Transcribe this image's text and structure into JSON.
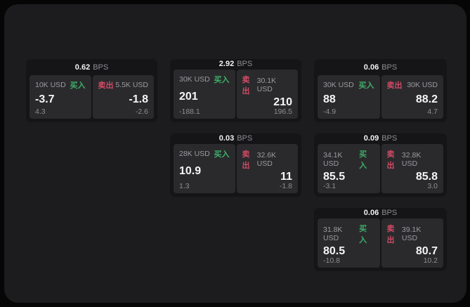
{
  "window": {
    "background": "#060607",
    "panel_background": "#1c1c1e"
  },
  "colors": {
    "card_background": "#151517",
    "pane_background": "#2a2a2c",
    "buy_green": "#3fae6a",
    "sell_red": "#cf4b66",
    "text_primary": "#f2f2f3",
    "text_muted": "#8e8e93"
  },
  "labels": {
    "bps_unit": "BPS",
    "buy": "买入",
    "sell": "卖出"
  },
  "cards": [
    {
      "bps": "0.62",
      "buy": {
        "amount": "10K USD",
        "price": "-3.7",
        "change": "4.3"
      },
      "sell": {
        "amount": "5.5K USD",
        "price": "-1.8",
        "change": "-2.6"
      }
    },
    {
      "bps": "2.92",
      "buy": {
        "amount": "30K USD",
        "price": "201",
        "change": "-188.1"
      },
      "sell": {
        "amount": "30.1K USD",
        "price": "210",
        "change": "196.5"
      }
    },
    {
      "bps": "0.06",
      "buy": {
        "amount": "30K USD",
        "price": "88",
        "change": "-4.9"
      },
      "sell": {
        "amount": "30K USD",
        "price": "88.2",
        "change": "4.7"
      }
    },
    {
      "bps": "0.03",
      "buy": {
        "amount": "28K USD",
        "price": "10.9",
        "change": "1.3"
      },
      "sell": {
        "amount": "32.6K USD",
        "price": "11",
        "change": "-1.8"
      }
    },
    {
      "bps": "0.09",
      "buy": {
        "amount": "34.1K USD",
        "price": "85.5",
        "change": "-3.1"
      },
      "sell": {
        "amount": "32.8K USD",
        "price": "85.8",
        "change": "3.0"
      }
    },
    {
      "bps": "0.06",
      "buy": {
        "amount": "31.8K USD",
        "price": "80.5",
        "change": "-10.8"
      },
      "sell": {
        "amount": "39.1K USD",
        "price": "80.7",
        "change": "10.2"
      }
    }
  ]
}
